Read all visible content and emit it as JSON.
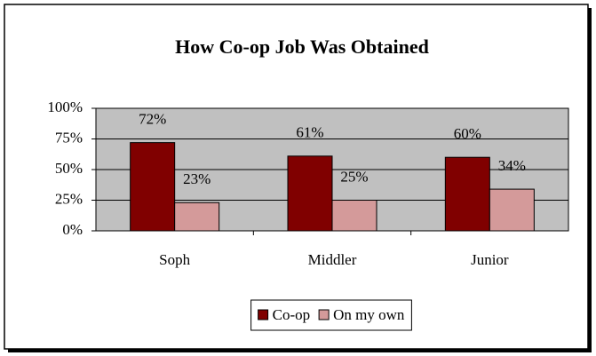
{
  "chart_data": {
    "type": "bar",
    "title": "How Co-op Job Was Obtained",
    "categories": [
      "Soph",
      "Middler",
      "Junior"
    ],
    "series": [
      {
        "name": "Co-op",
        "color": "#800000",
        "values": [
          72,
          61,
          60
        ],
        "value_labels": [
          "72%",
          "61%",
          "60%"
        ]
      },
      {
        "name": "On my own",
        "color": "#d49a9a",
        "values": [
          23,
          25,
          34
        ],
        "value_labels": [
          "23%",
          "25%",
          "34%"
        ]
      }
    ],
    "ylim": [
      0,
      100
    ],
    "yticks": [
      {
        "value": 0,
        "label": "0%"
      },
      {
        "value": 25,
        "label": "25%"
      },
      {
        "value": 50,
        "label": "50%"
      },
      {
        "value": 75,
        "label": "75%"
      },
      {
        "value": 100,
        "label": "100%"
      }
    ],
    "grid": true,
    "legend": "bottom",
    "plot_background": "#c0c0c0"
  }
}
